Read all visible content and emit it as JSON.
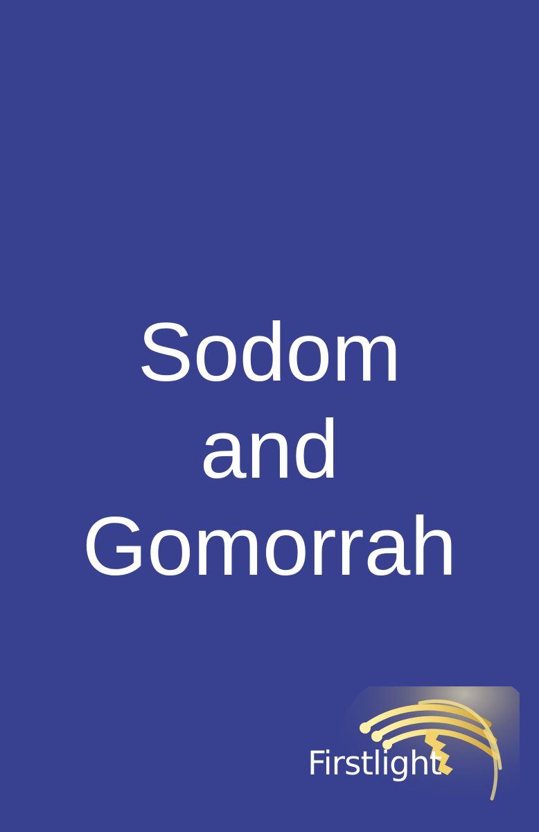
{
  "cover": {
    "title_lines": [
      "Sodom",
      "and",
      "Gomorrah"
    ],
    "background_color": "#38418f",
    "text_color": "#ffffff"
  },
  "logo": {
    "name": "Firstlight",
    "icon": "fibre-optic-light-trails-icon",
    "accent_color": "#f2d36b"
  }
}
